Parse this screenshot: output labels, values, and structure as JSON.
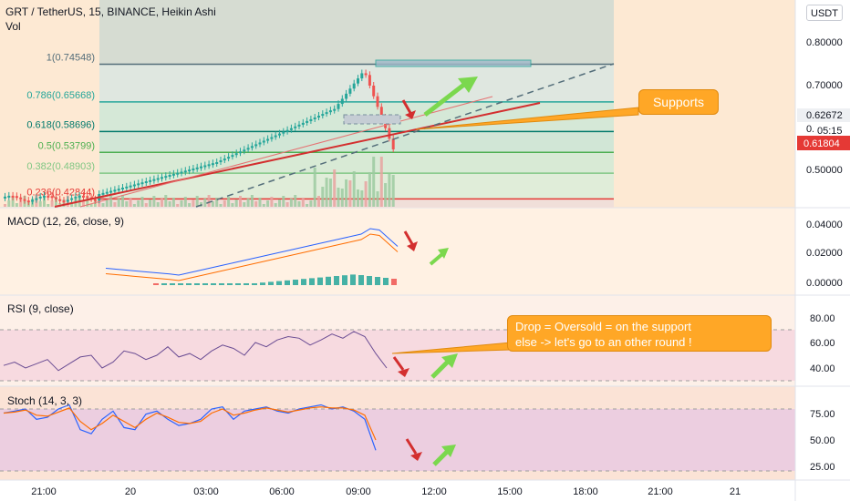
{
  "header": {
    "symbol": "GRT / TetherUS, 15, BINANCE, Heikin Ashi",
    "vol_label": "Vol",
    "currency_button": "USDT"
  },
  "fib_levels": [
    {
      "label": "1(0.74548)",
      "value": 0.74548,
      "color": "#546e7a"
    },
    {
      "label": "0.786(0.65668)",
      "value": 0.65668,
      "color": "#26a69a"
    },
    {
      "label": "0.618(0.58696)",
      "value": 0.58696,
      "color": "#00796b"
    },
    {
      "label": "0.5(0.53799)",
      "value": 0.53799,
      "color": "#4caf50"
    },
    {
      "label": "0.382(0.48903)",
      "value": 0.48903,
      "color": "#81c784"
    },
    {
      "label": "0.236(0.42844)",
      "value": 0.42844,
      "color": "#e53935"
    }
  ],
  "price_axis": {
    "ticks": [
      "0.80000",
      "0.70000",
      "0.50000"
    ],
    "current_price": "0.62672",
    "countdown": "05:15",
    "countdown_prefix": "0.",
    "red_level": "0.61804"
  },
  "annotations": {
    "supports": "Supports",
    "rsi_note_line1": "Drop = Oversold = on the support",
    "rsi_note_line2": "else -> let's go to an other round !"
  },
  "panes": {
    "macd": {
      "title": "MACD (12, 26, close, 9)",
      "ticks": [
        "0.04000",
        "0.02000",
        "0.00000"
      ]
    },
    "rsi": {
      "title": "RSI (9, close)",
      "ticks": [
        "80.00",
        "60.00",
        "40.00"
      ]
    },
    "stoch": {
      "title": "Stoch (14, 3, 3)",
      "ticks": [
        "75.00",
        "50.00",
        "25.00"
      ]
    }
  },
  "time_axis": {
    "labels": [
      "21:00",
      "20",
      "03:00",
      "06:00",
      "09:00",
      "12:00",
      "15:00",
      "18:00",
      "21:00",
      "21"
    ]
  },
  "colors": {
    "up": "#26a69a",
    "down": "#ef5350",
    "arrow_green": "#7bd84e",
    "arrow_red": "#d32f2f",
    "orange": "#ffa726",
    "macd_line": "#2962ff",
    "signal_line": "#ff6d00"
  }
}
